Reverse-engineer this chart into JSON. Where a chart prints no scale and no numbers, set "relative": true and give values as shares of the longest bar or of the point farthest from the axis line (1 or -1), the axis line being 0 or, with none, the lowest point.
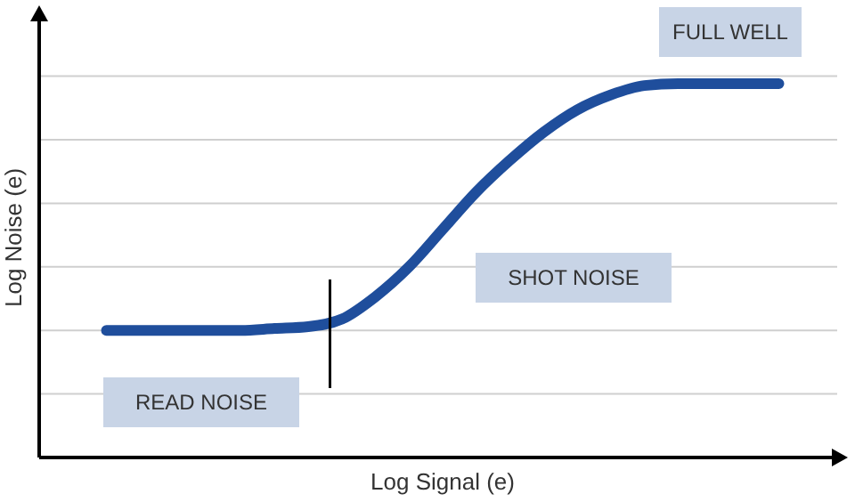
{
  "chart_data": {
    "type": "line",
    "relative": true,
    "xlabel": "Log Signal (e)",
    "ylabel": "Log Noise (e)",
    "categories": [
      null,
      null,
      null,
      null,
      null,
      null,
      null,
      null,
      null,
      null,
      null,
      null,
      null,
      null,
      null,
      null,
      null,
      null,
      null,
      null,
      null,
      null,
      null,
      null,
      null
    ],
    "series": [
      {
        "color": "#1f4e9c",
        "values": [
          null,
          null,
          0.34,
          0.34,
          0.34,
          0.34,
          0.34,
          0.345,
          0.35,
          0.37,
          0.43,
          0.51,
          0.61,
          0.71,
          0.795,
          0.87,
          0.93,
          0.97,
          0.995,
          1,
          1,
          1,
          1,
          null,
          null
        ]
      }
    ],
    "annotations": [
      "FULL WELL",
      "SHOT NOISE",
      "READ NOISE"
    ],
    "grid": true,
    "line_style": "solid",
    "marker": "none"
  }
}
